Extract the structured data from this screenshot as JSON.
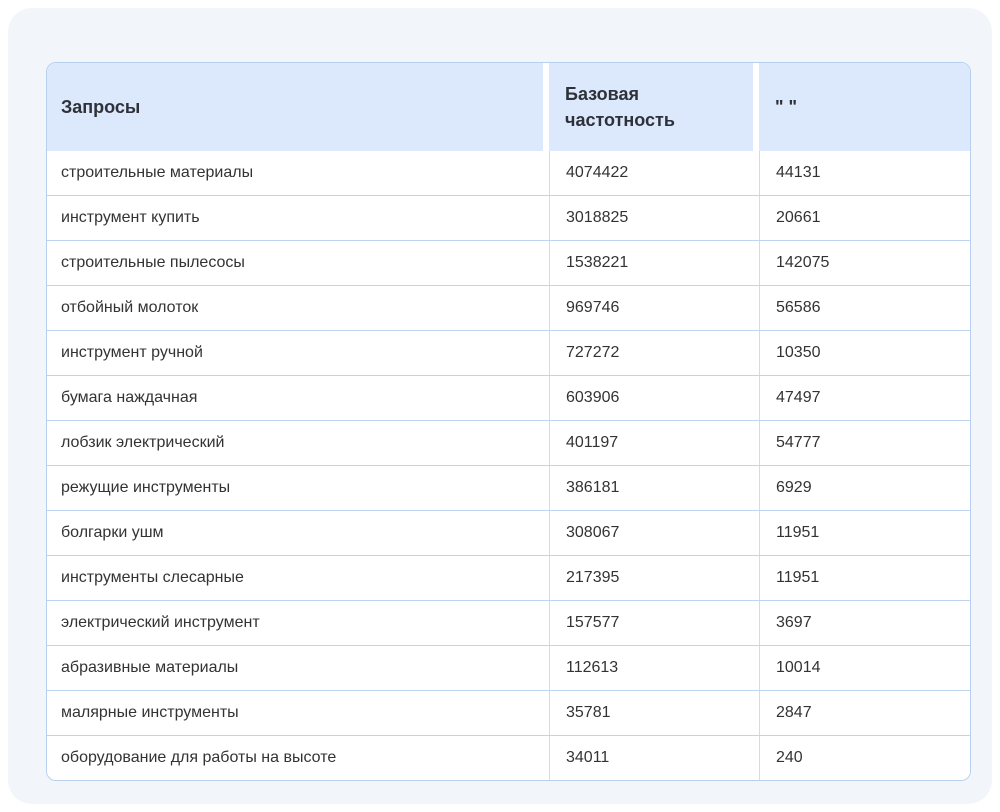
{
  "colors": {
    "canvas": "#ffffff",
    "panel_bg": "#f2f5f9",
    "header_bg": "#dce8fc",
    "table_border": "#b9cfee",
    "row_divider": "#bfd4f0",
    "column_divider": "#cbdcf6",
    "header_text": "#2e3138",
    "body_text": "#333333"
  },
  "table": {
    "columns": [
      {
        "key": "query",
        "label": "Запросы"
      },
      {
        "key": "base_frequency",
        "label": "Базовая частотность"
      },
      {
        "key": "quoted_frequency",
        "label": "\" \""
      }
    ],
    "rows": [
      {
        "query": "строительные материалы",
        "base_frequency": "4074422",
        "quoted_frequency": "44131"
      },
      {
        "query": "инструмент купить",
        "base_frequency": "3018825",
        "quoted_frequency": "20661"
      },
      {
        "query": "строительные пылесосы",
        "base_frequency": "1538221",
        "quoted_frequency": "142075"
      },
      {
        "query": "отбойный молоток",
        "base_frequency": "969746",
        "quoted_frequency": "56586"
      },
      {
        "query": "инструмент ручной",
        "base_frequency": "727272",
        "quoted_frequency": "10350"
      },
      {
        "query": "бумага наждачная",
        "base_frequency": "603906",
        "quoted_frequency": "47497"
      },
      {
        "query": "лобзик электрический",
        "base_frequency": "401197",
        "quoted_frequency": "54777"
      },
      {
        "query": "режущие инструменты",
        "base_frequency": "386181",
        "quoted_frequency": "6929"
      },
      {
        "query": "болгарки ушм",
        "base_frequency": "308067",
        "quoted_frequency": "11951"
      },
      {
        "query": "инструменты слесарные",
        "base_frequency": "217395",
        "quoted_frequency": "11951"
      },
      {
        "query": "электрический инструмент",
        "base_frequency": "157577",
        "quoted_frequency": "3697"
      },
      {
        "query": "абразивные материалы",
        "base_frequency": "112613",
        "quoted_frequency": "10014"
      },
      {
        "query": "малярные инструменты",
        "base_frequency": "35781",
        "quoted_frequency": "2847"
      },
      {
        "query": "оборудование для работы на высоте",
        "base_frequency": "34011",
        "quoted_frequency": "240"
      }
    ]
  }
}
